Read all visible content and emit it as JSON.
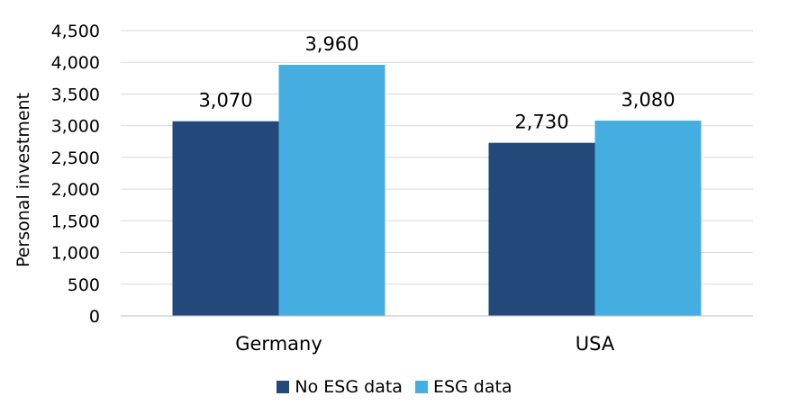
{
  "chart_data": {
    "type": "bar",
    "categories": [
      "Germany",
      "USA"
    ],
    "series": [
      {
        "name": "No ESG data",
        "values": [
          3070,
          2730
        ],
        "labels": [
          "3,070",
          "2,730"
        ],
        "color": "#23497A"
      },
      {
        "name": "ESG data",
        "values": [
          3960,
          3080
        ],
        "labels": [
          "3,960",
          "3,080"
        ],
        "color": "#45AEE1"
      }
    ],
    "title": "",
    "xlabel": "",
    "ylabel": "Personal investment",
    "ylim": [
      0,
      4500
    ],
    "yticks": [
      0,
      500,
      1000,
      1500,
      2000,
      2500,
      3000,
      3500,
      4000,
      4500
    ],
    "ytick_labels": [
      "0",
      "500",
      "1,000",
      "1,500",
      "2,000",
      "2,500",
      "3,000",
      "3,500",
      "4,000",
      "4,500"
    ],
    "grid": true,
    "legend": "bottom"
  }
}
